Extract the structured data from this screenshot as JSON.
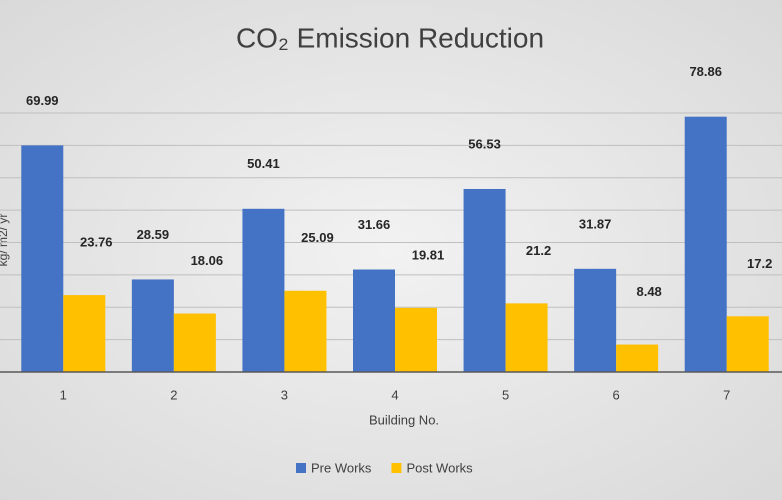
{
  "chart_data": {
    "type": "bar",
    "title": "CO₂ Emission Reduction",
    "y_label": "kg/ m2/ yr",
    "x_label": "Building No.",
    "categories": [
      "1",
      "2",
      "3",
      "4",
      "5",
      "6",
      "7"
    ],
    "series": [
      {
        "name": "Pre Works",
        "color": "#4472c4",
        "values": [
          69.99,
          28.59,
          50.41,
          31.66,
          56.53,
          31.87,
          78.86
        ]
      },
      {
        "name": "Post Works",
        "color": "#ffc000",
        "values": [
          23.76,
          18.06,
          25.09,
          19.81,
          21.2,
          8.48,
          17.2
        ]
      }
    ],
    "ylim": [
      0,
      80
    ],
    "yticks": [
      0,
      10,
      20,
      30,
      40,
      50,
      60,
      70,
      80
    ],
    "grid": true,
    "legend": "bottom"
  }
}
